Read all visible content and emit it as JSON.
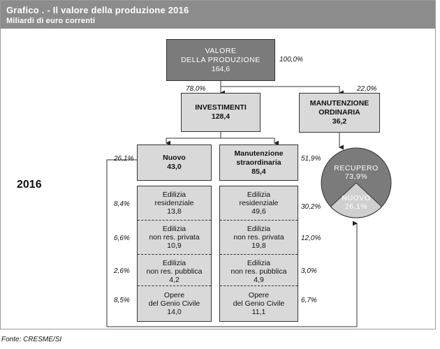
{
  "header": {
    "title": "Grafico . - Il valore della produzione 2016",
    "subtitle": "Miliardi di euro correnti"
  },
  "year_label": "2016",
  "valore": {
    "line1": "VALORE",
    "line2": "DELLA PRODUZIONE",
    "value": "164,6",
    "pct": "100,0%"
  },
  "investimenti": {
    "label": "INVESTIMENTI",
    "value": "128,4",
    "pct": "78,0%"
  },
  "manutenzione_ordinaria": {
    "line1": "MANUTENZIONE",
    "line2": "ORDINARIA",
    "value": "36,2",
    "pct": "22,0%"
  },
  "nuovo": {
    "label": "Nuovo",
    "value": "43,0",
    "pct": "26,1%"
  },
  "manutenzione_straordinaria": {
    "line1": "Manutenzione",
    "line2": "straordinaria",
    "value": "85,4",
    "pct": "51,9%"
  },
  "nuovo_breakdown": [
    {
      "line1": "Edilizia",
      "line2": "residenziale",
      "value": "13,8",
      "pct": "8,4%"
    },
    {
      "line1": "Edilizia",
      "line2": "non res. privata",
      "value": "10,9",
      "pct": "6,6%"
    },
    {
      "line1": "Edilizia",
      "line2": "non res. pubblica",
      "value": "4,2",
      "pct": "2,6%"
    },
    {
      "line1": "Opere",
      "line2": "del Genio Civile",
      "value": "14,0",
      "pct": "8,5%"
    }
  ],
  "manut_breakdown": [
    {
      "line1": "Edilizia",
      "line2": "residenziale",
      "value": "49,6",
      "pct": "30,2%"
    },
    {
      "line1": "Edilizia",
      "line2": "non res. privata",
      "value": "19,8",
      "pct": "12,0%"
    },
    {
      "line1": "Edilizia",
      "line2": "non res. pubblica",
      "value": "4,9",
      "pct": "3,0%"
    },
    {
      "line1": "Opere",
      "line2": "del Genio Civile",
      "value": "11,1",
      "pct": "6,7%"
    }
  ],
  "circle": {
    "recupero_label": "RECUPERO",
    "recupero_value": "73,9%",
    "nuovo_label": "NUOVO",
    "nuovo_value": "26,1%",
    "recupero_fraction": 0.739,
    "color_recupero": "#7b7b7b",
    "color_nuovo": "#cfcfcf"
  },
  "fonte": "Fonte: CRESME/SI"
}
